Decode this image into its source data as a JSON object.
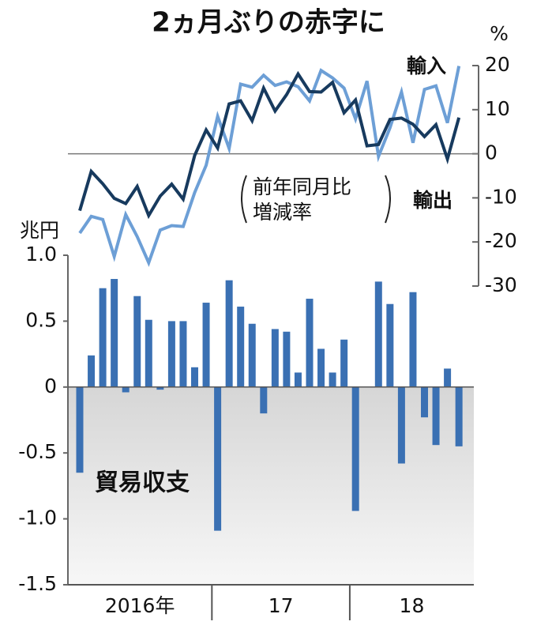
{
  "chart_data": [
    {
      "type": "line",
      "title": "2ヵ月ぶりの赤字に",
      "y_unit": "%",
      "note_lines": [
        "前年同月比",
        "増減率"
      ],
      "categories": [
        null,
        null,
        null,
        null,
        null,
        null,
        null,
        null,
        null,
        null,
        null,
        null,
        null,
        null,
        null,
        null,
        null,
        null,
        null,
        null,
        null,
        null,
        null,
        null,
        null,
        null,
        null,
        null,
        null,
        null,
        null,
        null,
        null,
        null
      ],
      "series": [
        {
          "name": "輸入",
          "color": "#6d9fd6",
          "values": [
            -18.0,
            -14.2,
            -14.9,
            -23.3,
            -13.8,
            -18.8,
            -24.7,
            -17.3,
            -16.3,
            -16.5,
            -8.8,
            -2.6,
            8.5,
            1.2,
            15.8,
            15.1,
            17.8,
            15.5,
            16.3,
            15.2,
            12.0,
            18.9,
            17.2,
            14.9,
            7.9,
            16.5,
            -0.6,
            5.9,
            14.0,
            2.5,
            14.6,
            15.4,
            7.0,
            19.9
          ]
        },
        {
          "name": "輸出",
          "color": "#173a5e",
          "values": [
            -12.9,
            -4.0,
            -6.8,
            -10.1,
            -11.3,
            -7.4,
            -14.0,
            -9.6,
            -6.9,
            -10.3,
            -0.4,
            5.4,
            1.3,
            11.3,
            12.0,
            7.5,
            14.9,
            9.7,
            13.4,
            18.1,
            14.1,
            14.0,
            16.2,
            9.3,
            12.2,
            1.8,
            2.1,
            7.8,
            8.1,
            6.7,
            3.9,
            6.6,
            -1.2,
            8.2
          ]
        }
      ],
      "ylim": [
        -30,
        20
      ],
      "yticks": [
        20,
        10,
        0,
        -10,
        -20,
        -30
      ]
    },
    {
      "type": "bar",
      "label": "貿易収支",
      "y_unit": "兆円",
      "color": "#3a70b3",
      "x_groups": [
        "2016年",
        "17",
        "18"
      ],
      "categories": [
        null,
        null,
        null,
        null,
        null,
        null,
        null,
        null,
        null,
        null,
        null,
        null,
        null,
        null,
        null,
        null,
        null,
        null,
        null,
        null,
        null,
        null,
        null,
        null,
        null,
        null,
        null,
        null,
        null,
        null,
        null,
        null,
        null,
        null
      ],
      "values": [
        -0.65,
        0.24,
        0.75,
        0.82,
        -0.04,
        0.69,
        0.51,
        -0.02,
        0.5,
        0.5,
        0.15,
        0.64,
        -1.09,
        0.81,
        0.61,
        0.48,
        -0.2,
        0.44,
        0.42,
        0.11,
        0.67,
        0.29,
        0.11,
        0.36,
        -0.94,
        0.0,
        0.8,
        0.63,
        -0.58,
        0.72,
        -0.23,
        -0.44,
        0.14,
        -0.45
      ],
      "ylim": [
        -1.5,
        1.0
      ],
      "yticks": [
        {
          "value": 1.0,
          "label": "1.0"
        },
        0.5,
        0,
        -0.5,
        {
          "value": -1.0,
          "label": "-1.0"
        },
        -1.5
      ]
    }
  ]
}
